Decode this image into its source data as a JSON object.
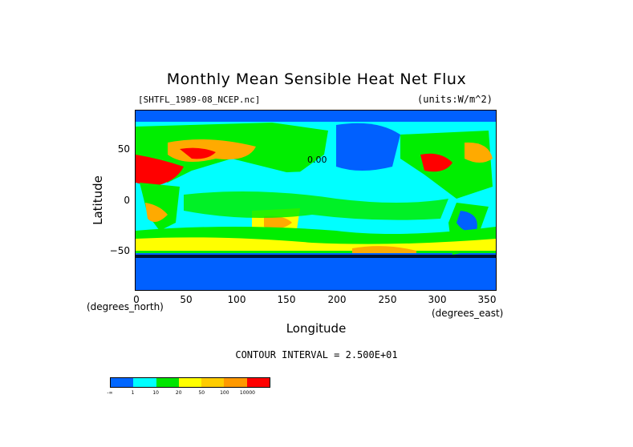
{
  "title": "Monthly Mean Sensible Heat Net Flux",
  "file_label": "[SHTFL_1989-08_NCEP.nc]",
  "units_label": "(units:W/m^2)",
  "contour_interval": "CONTOUR INTERVAL = 2.500E+01",
  "zero_contour_label": "0.00",
  "axes": {
    "xlabel": "Longitude",
    "ylabel": "Latitude",
    "x_units": "(degrees_east)",
    "y_units": "(degrees_north)",
    "x_range": [
      0,
      360
    ],
    "y_range": [
      -90,
      90
    ],
    "x_ticks": [
      "0",
      "50",
      "100",
      "150",
      "200",
      "250",
      "300",
      "350"
    ],
    "y_ticks": [
      "50",
      "0",
      "−50"
    ]
  },
  "colorbar": {
    "colors": [
      "#0066ff",
      "#00ffff",
      "#00e600",
      "#ffff00",
      "#ffcc00",
      "#ff9900",
      "#ff0000"
    ],
    "labels": [
      "-∞",
      "1",
      "10",
      "20",
      "50",
      "100",
      "10000"
    ]
  },
  "map_colors": {
    "ocean_low": "#0060ff",
    "ocean_mid": "#00ffff",
    "green": "#00ee00",
    "yellow": "#ffff00",
    "orange": "#ffaa00",
    "red": "#ff0000"
  }
}
